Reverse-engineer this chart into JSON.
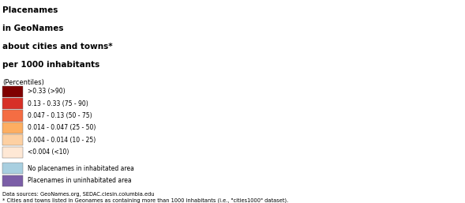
{
  "title_lines": [
    "Placenames",
    "in GeoNames",
    "about cities and towns*",
    "per 1000 inhabitants"
  ],
  "subtitle": "(Percentiles)",
  "legend_items": [
    {
      "label": ">0.33 (>90)",
      "color": "#7f0000"
    },
    {
      "label": "0.13 - 0.33 (75 - 90)",
      "color": "#d73027"
    },
    {
      "label": "0.047 - 0.13 (50 - 75)",
      "color": "#f46d43"
    },
    {
      "label": "0.014 - 0.047 (25 - 50)",
      "color": "#fdae61"
    },
    {
      "label": "0.004 - 0.014 (10 - 25)",
      "color": "#fdd0a2"
    },
    {
      "label": "<0.004 (<10)",
      "color": "#fee8d5"
    },
    {
      "label": "No placenames in inhabitated area",
      "color": "#a8cfe0"
    },
    {
      "label": "Placenames in uninhabitated area",
      "color": "#7b5ea7"
    }
  ],
  "footnote1": "Data sources: GeoNames.org, SEDAC.ciesin.columbia.edu",
  "footnote2": "* Cities and towns listed in Geonames as containing more than 1000 inhabitants (i.e., \"cities1000\" dataset).",
  "bg_color": "#ffffff",
  "ocean_color": "#ffffff",
  "map_border_color": "#aaaaaa",
  "figsize": [
    5.89,
    2.57
  ],
  "dpi": 100
}
